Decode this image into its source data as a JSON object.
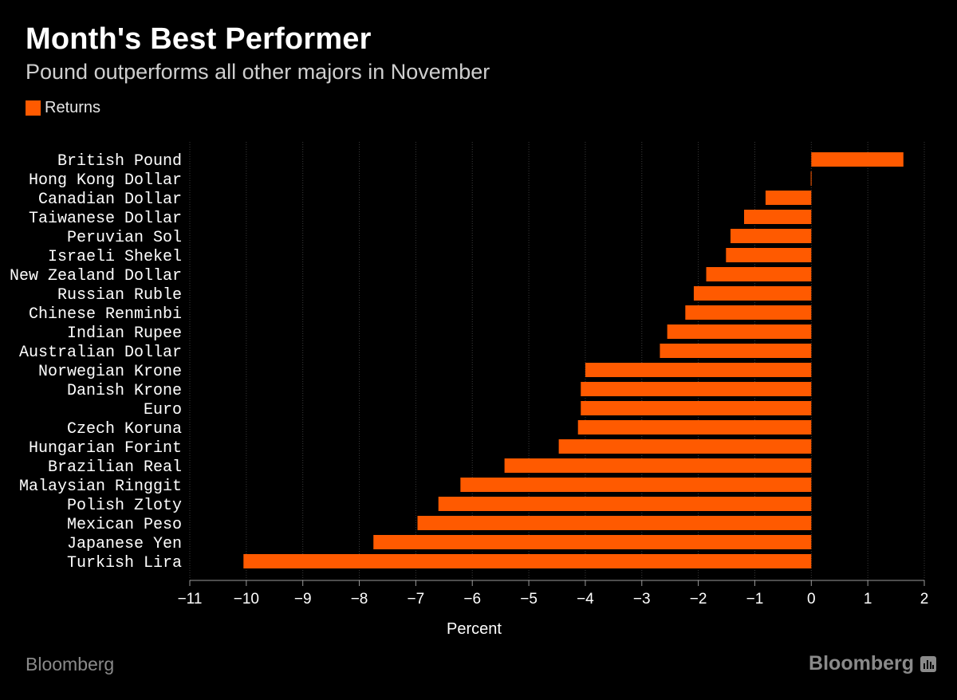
{
  "header": {
    "title": "Month's Best Performer",
    "subtitle": "Pound outperforms all other majors in November"
  },
  "footer": {
    "source": "Bloomberg",
    "logo_text": "Bloomberg",
    "logo_icon": "bloomberg-terminal-icon"
  },
  "colors": {
    "background": "#000000",
    "bar": "#ff5a00",
    "text": "#ffffff",
    "grid": "#3a3a3a",
    "muted": "#8a8a8a"
  },
  "chart_data": {
    "type": "bar",
    "orientation": "horizontal",
    "title": "Month's Best Performer",
    "subtitle": "Pound outperforms all other majors in November",
    "xlabel": "Percent",
    "ylabel": "",
    "xlim": [
      -11,
      2
    ],
    "xticks": [
      -11,
      -10,
      -9,
      -8,
      -7,
      -6,
      -5,
      -4,
      -3,
      -2,
      -1,
      0,
      1,
      2
    ],
    "grid": true,
    "legend": {
      "position": "top-left",
      "entries": [
        "Returns"
      ]
    },
    "categories": [
      "British Pound",
      "Hong Kong Dollar",
      "Canadian Dollar",
      "Taiwanese Dollar",
      "Peruvian Sol",
      "Israeli Shekel",
      "New Zealand Dollar",
      "Russian Ruble",
      "Chinese Renminbi",
      "Indian Rupee",
      "Australian Dollar",
      "Norwegian Krone",
      "Danish Krone",
      "Euro",
      "Czech Koruna",
      "Hungarian Forint",
      "Brazilian Real",
      "Malaysian Ringgit",
      "Polish Zloty",
      "Mexican Peso",
      "Japanese Yen",
      "Turkish Lira"
    ],
    "series": [
      {
        "name": "Returns",
        "values": [
          1.63,
          -0.01,
          -0.81,
          -1.19,
          -1.43,
          -1.51,
          -1.86,
          -2.08,
          -2.23,
          -2.55,
          -2.68,
          -4.0,
          -4.08,
          -4.08,
          -4.13,
          -4.47,
          -5.43,
          -6.21,
          -6.6,
          -6.97,
          -7.75,
          -10.05
        ]
      }
    ]
  }
}
